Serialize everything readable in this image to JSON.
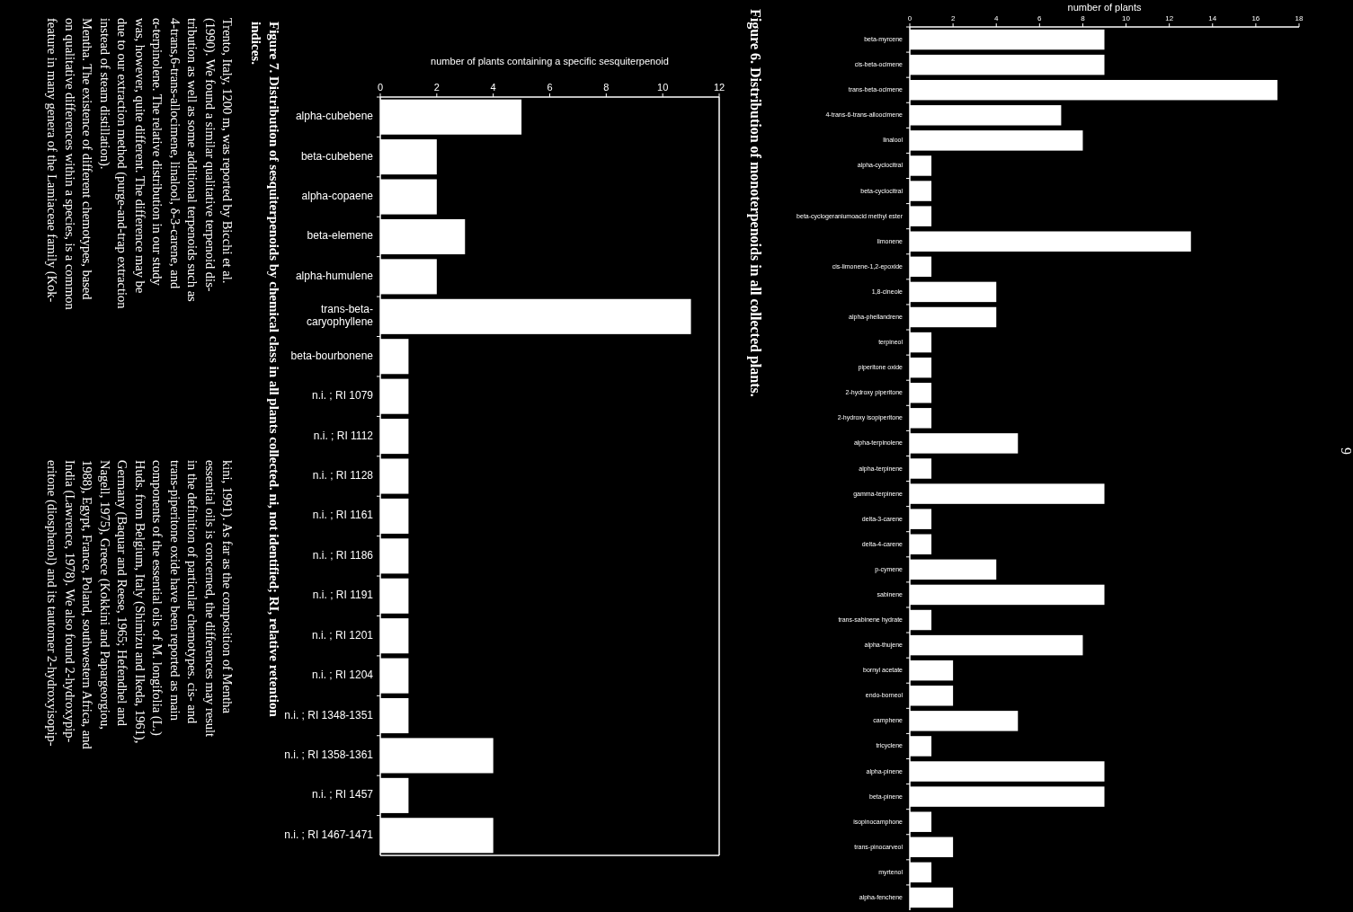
{
  "chart_data": [
    {
      "type": "bar",
      "orientation": "horizontal",
      "xlabel": "number of plants",
      "color": "#ffffff",
      "xlim": [
        0,
        18
      ],
      "xticks": [
        0,
        2,
        4,
        6,
        8,
        10,
        12,
        14,
        16,
        18
      ],
      "categories": [
        "beta-myrcene",
        "cis-beta-ocimene",
        "trans-beta-ocimene",
        "4-trans-6-trans-alloocimene",
        "linalool",
        "alpha-cyclocitral",
        "beta-cyclocitral",
        "beta-cyclogeraniumoacid methyl ester",
        "limonene",
        "cis-limonene-1,2-epoxide",
        "1,8-cineole",
        "alpha-phellandrene",
        "terpineol",
        "piperitone oxide",
        "2-hydroxy piperitone",
        "2-hydroxy isopiperitone",
        "alpha-terpinolene",
        "alpha-terpinene",
        "gamma-terpinene",
        "delta-3-carene",
        "delta-4-carene",
        "p-cymene",
        "sabinene",
        "trans-sabinene hydrate",
        "alpha-thujene",
        "bornyl acetate",
        "endo-borneol",
        "camphene",
        "tricyclene",
        "alpha-pinene",
        "beta-pinene",
        "isopinocamphone",
        "trans-pinocarveol",
        "myrtenol",
        "alpha-fenchene"
      ],
      "values": [
        9,
        9,
        17,
        7,
        8,
        1,
        1,
        1,
        13,
        1,
        4,
        4,
        1,
        1,
        1,
        1,
        5,
        1,
        9,
        1,
        1,
        4,
        9,
        1,
        8,
        2,
        2,
        5,
        1,
        9,
        9,
        1,
        2,
        1,
        2
      ],
      "annotations": [
        "Figure 6.  Distribution of monoterpenoids in all collected plants.",
        "9"
      ]
    },
    {
      "type": "bar",
      "orientation": "horizontal",
      "xlabel": "number of plants containing a specific sesquiterpenoid",
      "color": "#ffffff",
      "xlim": [
        0,
        12
      ],
      "xticks": [
        0,
        2,
        4,
        6,
        8,
        10,
        12
      ],
      "categories": [
        "alpha-cubebene",
        "beta-cubebene",
        "alpha-copaene",
        "beta-elemene",
        "alpha-humulene",
        "trans-beta-caryophyllene",
        "beta-bourbonene",
        "n.i. ; RI 1079",
        "n.i. ; RI 1112",
        "n.i. ; RI 1128",
        "n.i. ; RI 1161",
        "n.i. ; RI 1186",
        "n.i. ; RI 1191",
        "n.i. ; RI 1201",
        "n.i. ; RI 1204",
        "n.i. ; RI 1348-1351",
        "n.i. ; RI 1358-1361",
        "n.i. ; RI 1457",
        "n.i. ; RI 1467-1471"
      ],
      "values": [
        5,
        2,
        2,
        3,
        2,
        11,
        1,
        1,
        1,
        1,
        1,
        1,
        1,
        1,
        1,
        1,
        4,
        1,
        4
      ],
      "annotations": [
        "Figure 7.  Distribution of sesquiterpenoids by chemical class in all plants collected. ni, not identified; RI, relative retention",
        "indices.",
        "Trento, Italy, 1200 m, was reported by Bicchi et al.",
        "(1990). We found a similar qualitative terpenoid dis-",
        "tribution as well as some additional terpenoids such as",
        "4-trans,6-trans-allocimene, linalool, δ-3-carene, and",
        "α-terpinolene. The relative distribution in our study",
        "was, however, quite different. The difference may be",
        "due to our extraction method (purge-and-trap extraction",
        "instead of steam distillation).",
        "Mentha. The existence of different chemotypes, based",
        "on qualitative differences within a species, is a common",
        "feature in many genera of the Lamiaceae family (Kok-",
        "kini, 1991). As far as the composition of Mentha",
        "essential oils is concerned, the differences may result",
        "in the definition of particular chemotypes. cis- and",
        "trans-piperitone oxide have been reported as main",
        "components of the essential oils of M. longifolia (L.)",
        "Huds. from Belgium, Italy (Shimizu and Ikeda, 1961),",
        "Germany (Baquar and Reese, 1965; Hefendhel and",
        "Nagell, 1975), Greece (Kokkini and Papargeorgiou,",
        "1988), Egypt, France, Poland, southwestern Africa, and",
        "India (Lawrence, 1978). We also found 2-hydroxypip-",
        "eritone (diosphenol) and its tautomer 2-hydroxyisopip-"
      ]
    }
  ]
}
